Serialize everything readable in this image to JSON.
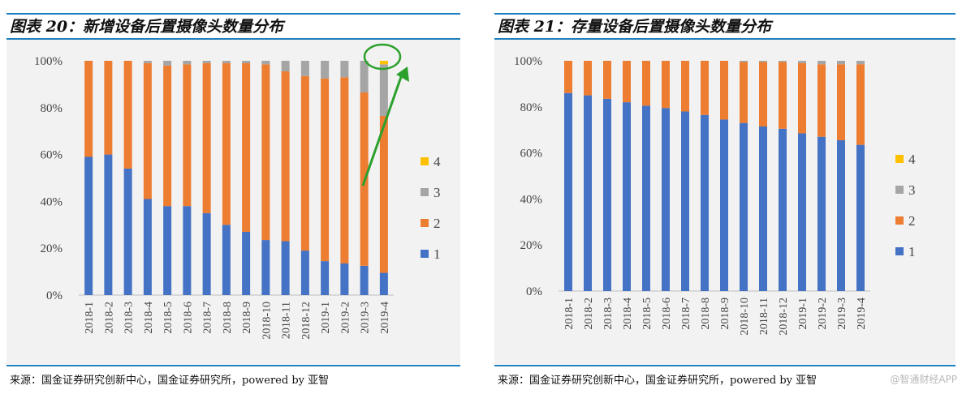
{
  "colors": {
    "series_1": "#4472c4",
    "series_2": "#ed7d31",
    "series_3": "#a5a5a5",
    "series_4": "#ffc000",
    "annotation": "#2ca02c",
    "rule": "#1f7fbf"
  },
  "watermark": "@智通财经APP",
  "chart_data": [
    {
      "type": "bar",
      "stacked": true,
      "title": "图表 20：新增设备后置摄像头数量分布",
      "source": "来源：国金证券研究创新中心，国金证券研究所，powered by 亚智",
      "categories": [
        "2018-1",
        "2018-2",
        "2018-3",
        "2018-4",
        "2018-5",
        "2018-6",
        "2018-7",
        "2018-8",
        "2018-9",
        "2018-10",
        "2018-11",
        "2018-12",
        "2019-1",
        "2019-2",
        "2019-3",
        "2019-4"
      ],
      "series": [
        {
          "name": "1",
          "values": [
            59,
            60,
            54,
            41,
            38,
            38,
            35,
            30,
            27,
            23.5,
            23,
            19,
            14.5,
            13.5,
            12.5,
            9.5
          ]
        },
        {
          "name": "2",
          "values": [
            41,
            40,
            46,
            58,
            60,
            60.5,
            64,
            69,
            72,
            75,
            72.5,
            74.5,
            78,
            79.5,
            74,
            67
          ]
        },
        {
          "name": "3",
          "values": [
            0,
            0,
            0,
            1,
            2,
            1.5,
            1,
            1,
            1,
            1.5,
            4.5,
            6.5,
            7.5,
            7,
            13.5,
            22
          ]
        },
        {
          "name": "4",
          "values": [
            0,
            0,
            0,
            0,
            0,
            0,
            0,
            0,
            0,
            0,
            0,
            0,
            0,
            0,
            0,
            1.5
          ]
        }
      ],
      "legend_order": [
        "4",
        "3",
        "2",
        "1"
      ],
      "legend_position": "right",
      "ylim": [
        0,
        100
      ],
      "yticks": [
        "0%",
        "20%",
        "40%",
        "60%",
        "80%",
        "100%"
      ],
      "annotation": "green circle around top of 2019-4 bar with arrow"
    },
    {
      "type": "bar",
      "stacked": true,
      "title": "图表 21：存量设备后置摄像头数量分布",
      "source": "来源：国金证券研究创新中心，国金证券研究所，powered by 亚智",
      "categories": [
        "2018-1",
        "2018-2",
        "2018-3",
        "2018-4",
        "2018-5",
        "2018-6",
        "2018-7",
        "2018-8",
        "2018-9",
        "2018-10",
        "2018-11",
        "2018-12",
        "2019-1",
        "2019-2",
        "2019-3",
        "2019-4"
      ],
      "series": [
        {
          "name": "1",
          "values": [
            86,
            85,
            83.5,
            82,
            80.5,
            79.5,
            78,
            76.5,
            74.5,
            73,
            71.5,
            70.5,
            68.5,
            67,
            65.5,
            63.5
          ]
        },
        {
          "name": "2",
          "values": [
            14,
            15,
            16.5,
            18,
            19.5,
            20.5,
            22,
            23.5,
            25.5,
            26.5,
            28,
            29,
            30.5,
            31.5,
            33,
            35
          ]
        },
        {
          "name": "3",
          "values": [
            0,
            0,
            0,
            0,
            0,
            0,
            0,
            0,
            0,
            0.5,
            0.5,
            0.5,
            1,
            1.5,
            1.5,
            1.5
          ]
        },
        {
          "name": "4",
          "values": [
            0,
            0,
            0,
            0,
            0,
            0,
            0,
            0,
            0,
            0,
            0,
            0,
            0,
            0,
            0,
            0
          ]
        }
      ],
      "legend_order": [
        "4",
        "3",
        "2",
        "1"
      ],
      "legend_position": "right",
      "ylim": [
        0,
        100
      ],
      "yticks": [
        "0%",
        "20%",
        "40%",
        "60%",
        "80%",
        "100%"
      ]
    }
  ]
}
